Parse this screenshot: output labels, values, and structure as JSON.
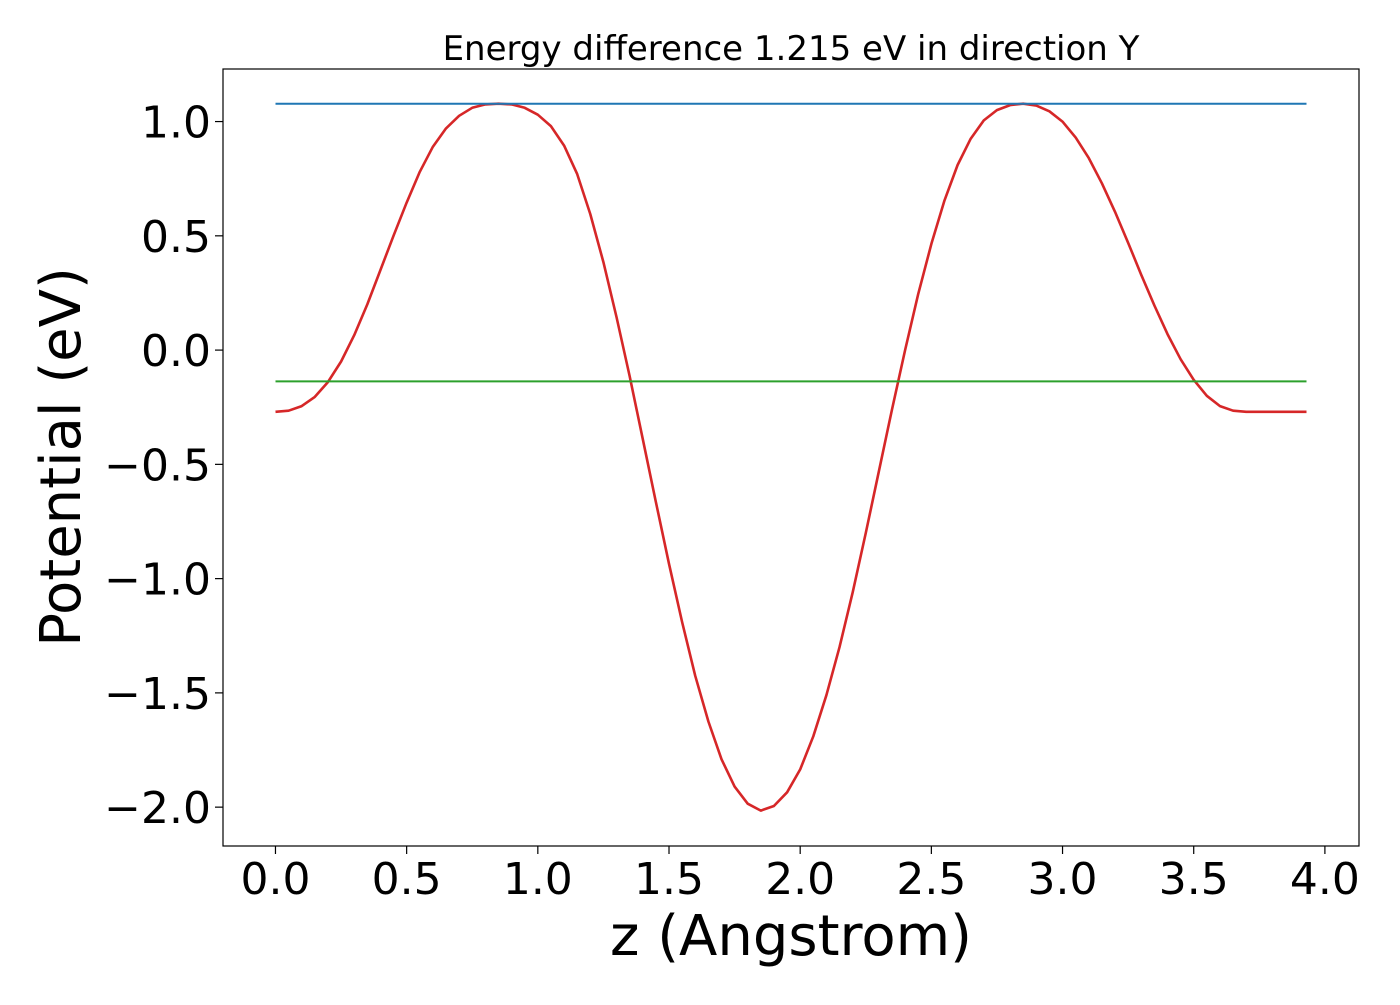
{
  "chart_data": {
    "type": "line",
    "title": "Energy difference 1.215 eV in direction Y",
    "xlabel": "z (Angstrom)",
    "ylabel": "Potential (eV)",
    "xlim": [
      -0.2,
      4.13
    ],
    "ylim": [
      -2.17,
      1.23
    ],
    "xticks": [
      0.0,
      0.5,
      1.0,
      1.5,
      2.0,
      2.5,
      3.0,
      3.5,
      4.0
    ],
    "xtick_labels": [
      "0.0",
      "0.5",
      "1.0",
      "1.5",
      "2.0",
      "2.5",
      "3.0",
      "3.5",
      "4.0"
    ],
    "yticks": [
      1.0,
      0.5,
      0.0,
      -0.5,
      -1.0,
      -1.5,
      -2.0
    ],
    "ytick_labels": [
      "1.0",
      "0.5",
      "0.0",
      "−0.5",
      "−1.0",
      "−1.5",
      "−2.0"
    ],
    "grid": false,
    "series": [
      {
        "color": "#d62728",
        "x": [
          0.0,
          0.05,
          0.1,
          0.15,
          0.2,
          0.25,
          0.3,
          0.35,
          0.4,
          0.45,
          0.5,
          0.55,
          0.6,
          0.65,
          0.7,
          0.75,
          0.8,
          0.85,
          0.9,
          0.95,
          1.0,
          1.05,
          1.1,
          1.15,
          1.2,
          1.25,
          1.3,
          1.35,
          1.4,
          1.45,
          1.5,
          1.55,
          1.6,
          1.65,
          1.7,
          1.75,
          1.8,
          1.85,
          1.9,
          1.95,
          2.0,
          2.05,
          2.1,
          2.15,
          2.2,
          2.25,
          2.3,
          2.35,
          2.4,
          2.45,
          2.5,
          2.55,
          2.6,
          2.65,
          2.7,
          2.75,
          2.8,
          2.85,
          2.9,
          2.95,
          3.0,
          3.05,
          3.1,
          3.15,
          3.2,
          3.25,
          3.3,
          3.35,
          3.4,
          3.45,
          3.5,
          3.55,
          3.6,
          3.65,
          3.7,
          3.75,
          3.8,
          3.85,
          3.9,
          3.93
        ],
        "y": [
          -0.27,
          -0.265,
          -0.245,
          -0.205,
          -0.14,
          -0.05,
          0.065,
          0.2,
          0.35,
          0.5,
          0.645,
          0.78,
          0.89,
          0.97,
          1.025,
          1.06,
          1.075,
          1.078,
          1.075,
          1.06,
          1.03,
          0.98,
          0.895,
          0.77,
          0.595,
          0.385,
          0.145,
          -0.115,
          -0.39,
          -0.665,
          -0.935,
          -1.19,
          -1.425,
          -1.625,
          -1.79,
          -1.91,
          -1.985,
          -2.015,
          -1.995,
          -1.935,
          -1.835,
          -1.69,
          -1.51,
          -1.3,
          -1.06,
          -0.8,
          -0.53,
          -0.26,
          0.0,
          0.245,
          0.465,
          0.655,
          0.81,
          0.925,
          1.005,
          1.05,
          1.072,
          1.078,
          1.07,
          1.045,
          1.0,
          0.93,
          0.84,
          0.73,
          0.605,
          0.47,
          0.33,
          0.195,
          0.07,
          -0.04,
          -0.13,
          -0.2,
          -0.245,
          -0.265,
          -0.27,
          -0.27,
          -0.27,
          -0.27,
          -0.27,
          -0.27
        ]
      },
      {
        "color": "#1f77b4",
        "x": [
          0.0,
          3.93
        ],
        "y": [
          1.078,
          1.078
        ]
      },
      {
        "color": "#2ca02c",
        "x": [
          0.0,
          3.93
        ],
        "y": [
          -0.137,
          -0.137
        ]
      }
    ]
  }
}
